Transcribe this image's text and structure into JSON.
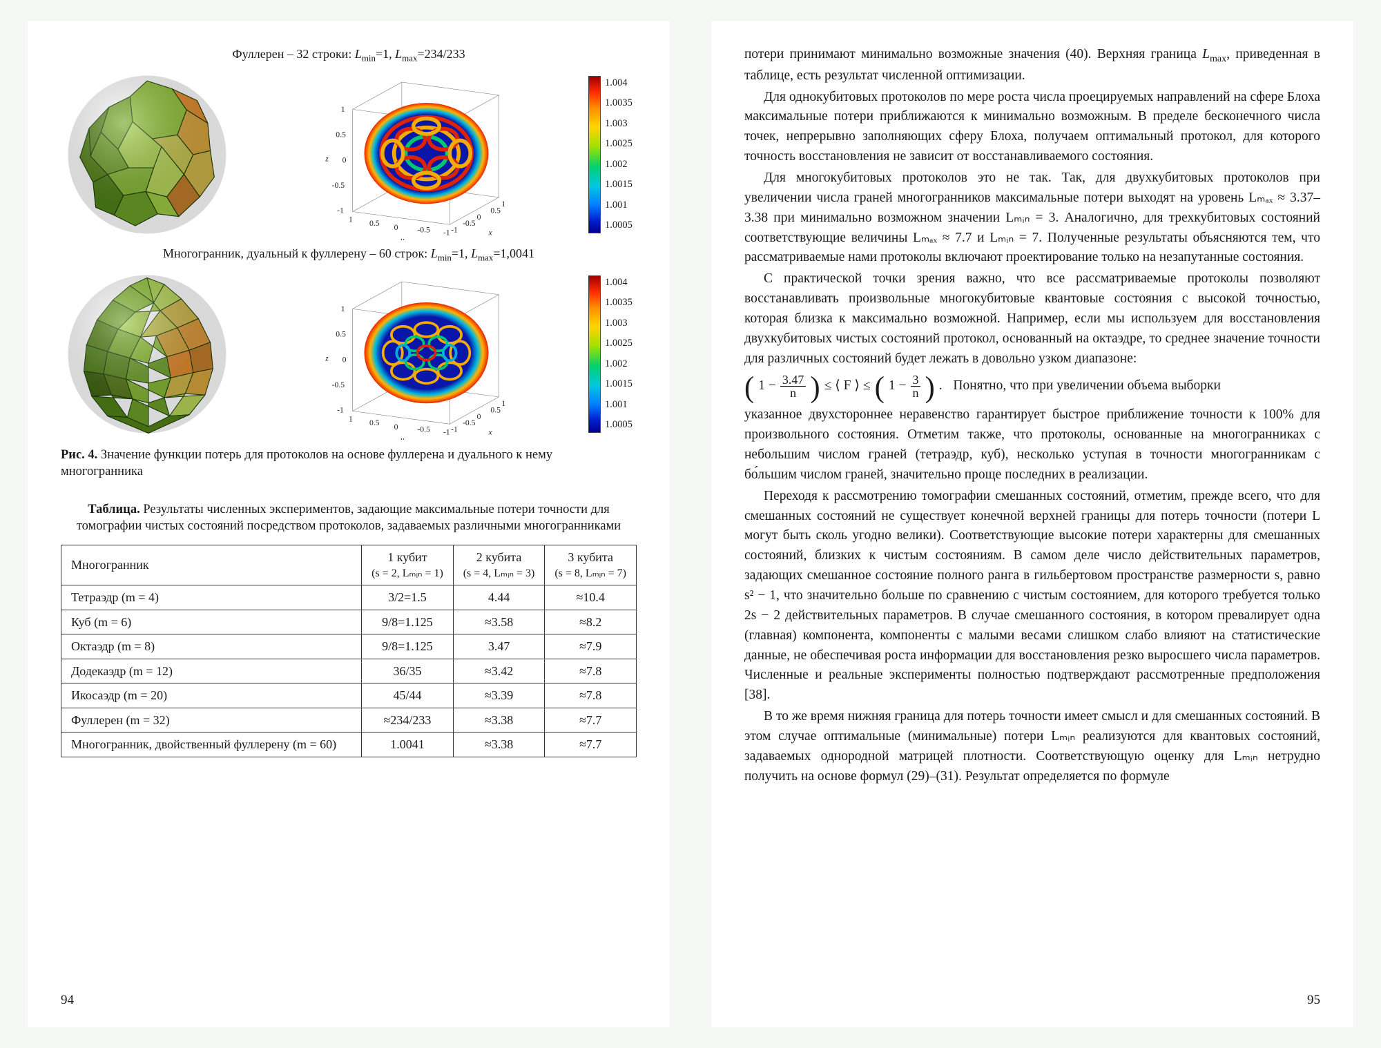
{
  "page_left_num": "94",
  "page_right_num": "95",
  "fig1": {
    "title": "Фуллерен – 32 строки: Lₘᵢₙ=1, Lₘₐₓ=234/233"
  },
  "fig2": {
    "title": "Многогранник, дуальный к фуллерену – 60 строк: Lₘᵢₙ=1, Lₘₐₓ=1,0041"
  },
  "colorbar_labels": [
    "1.004",
    "1.0035",
    "1.003",
    "1.0025",
    "1.002",
    "1.0015",
    "1.001",
    "1.0005"
  ],
  "axis": {
    "x": "x",
    "y": "y",
    "z": "z",
    "ticks_xy": [
      "1",
      "0.5",
      "0",
      "-0.5",
      "-1"
    ],
    "ticks_z": [
      "1",
      "0.5",
      "0",
      "-0.5",
      "-1"
    ]
  },
  "fig_caption_label": "Рис. 4.",
  "fig_caption_text": " Значение функции потерь для протоколов на основе фуллерена и дуального к нему многогранника",
  "table_caption_label": "Таблица.",
  "table_caption_text": " Результаты численных экспериментов, задающие максимальные потери точности для томографии чистых состояний посредством протоколов, задаваемых различными многогранниками",
  "table": {
    "header": [
      "Многогранник",
      "1 кубит",
      "2 кубита",
      "3 кубита"
    ],
    "subheader": [
      "",
      "(s = 2, Lₘᵢₙ = 1)",
      "(s = 4, Lₘᵢₙ = 3)",
      "(s = 8, Lₘᵢₙ = 7)"
    ],
    "rows": [
      [
        "Тетраэдр (m = 4)",
        "3/2=1.5",
        "4.44",
        "≈10.4"
      ],
      [
        "Куб (m = 6)",
        "9/8=1.125",
        "≈3.58",
        "≈8.2"
      ],
      [
        "Октаэдр (m = 8)",
        "9/8=1.125",
        "3.47",
        "≈7.9"
      ],
      [
        "Додекаэдр (m = 12)",
        "36/35",
        "≈3.42",
        "≈7.8"
      ],
      [
        "Икосаэдр (m = 20)",
        "45/44",
        "≈3.39",
        "≈7.8"
      ],
      [
        "Фуллерен (m = 32)",
        "≈234/233",
        "≈3.38",
        "≈7.7"
      ],
      [
        "Многогранник, двойственный фуллерену (m = 60)",
        "1.0041",
        "≈3.38",
        "≈7.7"
      ]
    ]
  },
  "paras": {
    "r0a": "потери принимают минимально возможные значения (40). Верхняя граница ",
    "r0b": ", приведенная в таблице, есть результат численной оптимизации.",
    "r1": "Для однокубитовых протоколов по мере роста числа проецируемых направлений на сфере Блоха максимальные потери приближаются к минимально возможным. В пределе бесконечного числа точек, непрерывно заполняющих сферу Блоха, получаем оптимальный протокол, для которого точность восстановления не зависит от восстанавливаемого состояния.",
    "r2": "Для многокубитовых протоколов это не так. Так, для двухкубитовых протоколов при увеличении числа граней многогранников максимальные потери выходят на уровень Lₘₐₓ ≈ 3.37–3.38 при минимально возможном значении Lₘᵢₙ = 3. Аналогично, для трехкубитовых состояний соответствующие величины Lₘₐₓ ≈ 7.7 и Lₘᵢₙ = 7. Полученные результаты объясняются тем, что рассматриваемые нами протоколы включают проектирование только на незапутанные состояния.",
    "r3": "С практической точки зрения важно, что все рассматриваемые протоколы позволяют восстанавливать произвольные многокубитовые квантовые состояния с высокой точностью, которая близка к максимально возможной. Например, если мы используем для восстановления двухкубитовых чистых состояний протокол, основанный на октаэдре, то среднее значение точности для различных состояний будет лежать в довольно узком диапазоне:",
    "r4after": "Понятно, что при увеличении объема выборки",
    "r5": "указанное двухстороннее неравенство гарантирует быстрое приближение точности к 100% для произвольного состояния. Отметим также, что протоколы, основанные на многогранниках с небольшим числом граней (тетраэдр, куб), несколько уступая в точности многогранникам с бо́льшим числом граней, значительно проще последних в реализации.",
    "r6": "Переходя к рассмотрению томографии смешанных состояний, отметим, прежде всего, что для смешанных состояний не существует конечной верхней границы для потерь точности (потери L могут быть сколь угодно велики). Соответствующие высокие потери характерны для смешанных состояний, близких к чистым состояниям. В самом деле число действительных параметров, задающих смешанное состояние полного ранга в гильбертовом пространстве размерности s, равно s² − 1, что значительно больше по сравнению с чистым состоянием, для которого требуется только 2s − 2 действительных параметров. В случае смешанного состояния, в котором превалирует одна (главная) компонента, компоненты с малыми весами слишком слабо влияют на статистические данные, не обеспечивая роста информации для восстановления резко выросшего числа параметров. Численные и реальные эксперименты полностью подтверждают рассмотренные предположения [38].",
    "r7": "В то же время нижняя граница для потерь точности имеет смысл и для смешанных состояний. В этом случае оптимальные (минимальные) потери Lₘᵢₙ реализуются для квантовых состояний, задаваемых однородной матрицей плотности. Соответствующую оценку для Lₘᵢₙ нетрудно получить на основе формул (29)–(31). Результат определяется по формуле"
  },
  "eq": {
    "num1": "3.47",
    "den1": "n",
    "mid": "≤ ⟨ F ⟩ ≤",
    "num2": "3",
    "den2": "n"
  },
  "poly_colors": {
    "a": [
      "#5a8a1f",
      "#77a82a",
      "#8fbf36",
      "#a6cf4a",
      "#6f9f2b",
      "#528014",
      "#c4c24f",
      "#d4a23c",
      "#e08a2f"
    ],
    "b": [
      "#4f8018",
      "#6a9c26",
      "#84b634",
      "#9ec844",
      "#b6d358",
      "#cdb44a",
      "#d8973c",
      "#c07a2a",
      "#58781b",
      "#3f6410"
    ]
  },
  "sphere_pattern_colors": {
    "bg": "#0a16a8",
    "rim": "#e82400",
    "mid": "#ffb400",
    "cool": "#00b8e0"
  }
}
